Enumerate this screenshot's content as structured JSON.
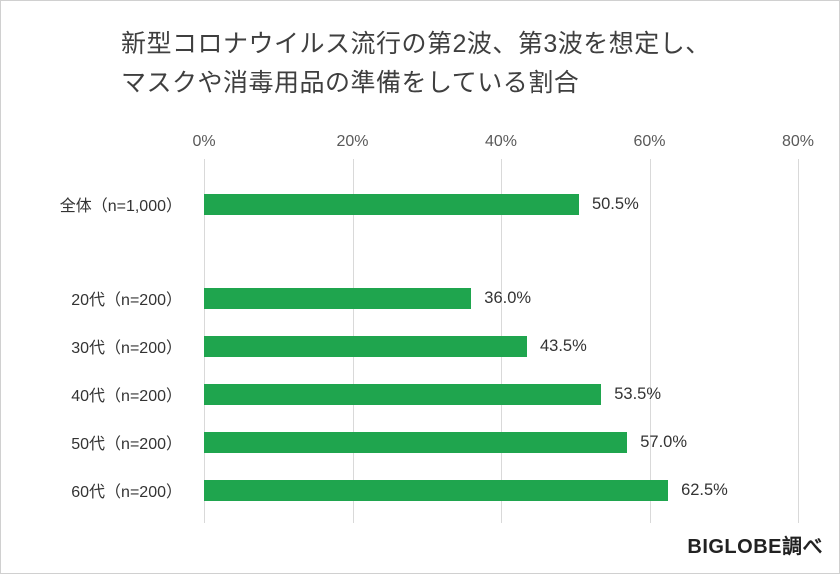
{
  "title": {
    "line1": "新型コロナウイルス流行の第2波、第3波を想定し、",
    "line2": "マスクや消毒用品の準備をしている割合"
  },
  "source": "BIGLOBE調べ",
  "colors": {
    "bar": "#1fa54e",
    "grid": "#d9d9d9",
    "text": "#333333"
  },
  "chart_data": {
    "type": "bar",
    "orientation": "horizontal",
    "title": "新型コロナウイルス流行の第2波、第3波を想定し、マスクや消毒用品の準備をしている割合",
    "categories": [
      "全体（n=1,000）",
      "20代（n=200）",
      "30代（n=200）",
      "40代（n=200）",
      "50代（n=200）",
      "60代（n=200）"
    ],
    "values": [
      50.5,
      36.0,
      43.5,
      53.5,
      57.0,
      62.5
    ],
    "value_labels": [
      "50.5%",
      "36.0%",
      "43.5%",
      "53.5%",
      "57.0%",
      "62.5%"
    ],
    "xlim": [
      0,
      80
    ],
    "x_ticks": [
      "0%",
      "20%",
      "40%",
      "60%",
      "80%"
    ],
    "grid": true,
    "legend": false,
    "gap_after_first": true
  }
}
